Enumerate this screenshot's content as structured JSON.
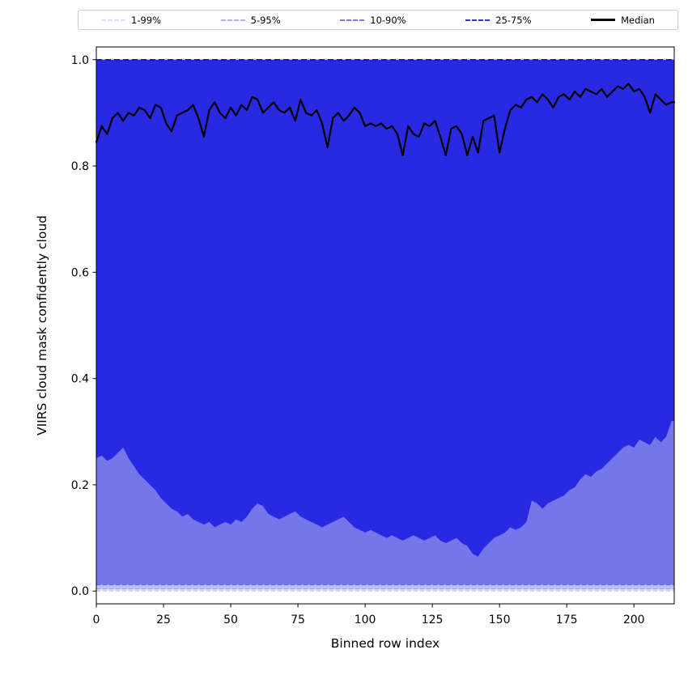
{
  "legend": {
    "entries": [
      {
        "label": "1-99%",
        "style": "dashed",
        "color": "#1c1ce0",
        "opacity": 0.15,
        "width": 2
      },
      {
        "label": "5-95%",
        "style": "dashed",
        "color": "#1c1ce0",
        "opacity": 0.35,
        "width": 2
      },
      {
        "label": "10-90%",
        "style": "dashed",
        "color": "#1c1ce0",
        "opacity": 0.6,
        "width": 2
      },
      {
        "label": "25-75%",
        "style": "dashed",
        "color": "#1c1ce0",
        "opacity": 0.9,
        "width": 2
      },
      {
        "label": "Median",
        "style": "solid",
        "color": "#000000",
        "opacity": 1,
        "width": 3
      }
    ]
  },
  "chart_data": {
    "type": "area",
    "title": "",
    "xlabel": "Binned row index",
    "ylabel": "VIIRS cloud mask confidently cloud",
    "xlim": [
      0,
      215
    ],
    "ylim": [
      -0.024,
      1.024
    ],
    "xticks": [
      0,
      25,
      50,
      75,
      100,
      125,
      150,
      175,
      200
    ],
    "yticks": [
      0.0,
      0.2,
      0.4,
      0.6,
      0.8,
      1.0
    ],
    "grid": false,
    "legend_position": "top-expanded",
    "base_color": "#1c1ce0",
    "median_color": "#000000",
    "upper_bound_line": {
      "y": 1.0,
      "style": "dashed",
      "color": "#10109a"
    },
    "x": [
      0,
      2,
      4,
      6,
      8,
      10,
      12,
      14,
      16,
      18,
      20,
      22,
      24,
      26,
      28,
      30,
      32,
      34,
      36,
      38,
      40,
      42,
      44,
      46,
      48,
      50,
      52,
      54,
      56,
      58,
      60,
      62,
      64,
      66,
      68,
      70,
      72,
      74,
      76,
      78,
      80,
      82,
      84,
      86,
      88,
      90,
      92,
      94,
      96,
      98,
      100,
      102,
      104,
      106,
      108,
      110,
      112,
      114,
      116,
      118,
      120,
      122,
      124,
      126,
      128,
      130,
      132,
      134,
      136,
      138,
      140,
      142,
      144,
      146,
      148,
      150,
      152,
      154,
      156,
      158,
      160,
      162,
      164,
      166,
      168,
      170,
      172,
      174,
      176,
      178,
      180,
      182,
      184,
      186,
      188,
      190,
      192,
      194,
      196,
      198,
      200,
      202,
      204,
      206,
      208,
      210,
      212,
      214
    ],
    "bands": [
      {
        "name": "1-99%",
        "low": 0.0,
        "high": 1.0,
        "fill_alpha": 0.12
      },
      {
        "name": "5-95%",
        "low": 0.004,
        "high": 1.0,
        "fill_alpha": 0.18
      },
      {
        "name": "10-90%",
        "low": 0.012,
        "high": 1.0,
        "fill_alpha": 0.45
      },
      {
        "name": "25-75%",
        "high": 1.0,
        "fill_alpha": 0.85,
        "low_series": [
          0.25,
          0.255,
          0.245,
          0.25,
          0.26,
          0.27,
          0.25,
          0.235,
          0.22,
          0.21,
          0.2,
          0.19,
          0.175,
          0.165,
          0.155,
          0.15,
          0.14,
          0.145,
          0.135,
          0.13,
          0.125,
          0.13,
          0.12,
          0.125,
          0.13,
          0.125,
          0.135,
          0.13,
          0.14,
          0.155,
          0.165,
          0.16,
          0.145,
          0.14,
          0.135,
          0.14,
          0.145,
          0.15,
          0.14,
          0.135,
          0.13,
          0.125,
          0.12,
          0.125,
          0.13,
          0.135,
          0.14,
          0.13,
          0.12,
          0.115,
          0.11,
          0.115,
          0.11,
          0.105,
          0.1,
          0.105,
          0.1,
          0.095,
          0.1,
          0.105,
          0.1,
          0.095,
          0.1,
          0.105,
          0.095,
          0.09,
          0.095,
          0.1,
          0.09,
          0.085,
          0.07,
          0.065,
          0.08,
          0.09,
          0.1,
          0.105,
          0.11,
          0.12,
          0.115,
          0.12,
          0.13,
          0.17,
          0.165,
          0.155,
          0.165,
          0.17,
          0.175,
          0.18,
          0.19,
          0.195,
          0.21,
          0.22,
          0.215,
          0.225,
          0.23,
          0.24,
          0.25,
          0.26,
          0.27,
          0.275,
          0.27,
          0.285,
          0.28,
          0.275,
          0.29,
          0.28,
          0.29,
          0.32
        ]
      }
    ],
    "median": [
      0.845,
      0.875,
      0.86,
      0.89,
      0.9,
      0.885,
      0.9,
      0.895,
      0.91,
      0.905,
      0.89,
      0.915,
      0.91,
      0.88,
      0.865,
      0.895,
      0.9,
      0.905,
      0.915,
      0.89,
      0.855,
      0.905,
      0.92,
      0.9,
      0.89,
      0.91,
      0.895,
      0.915,
      0.905,
      0.93,
      0.925,
      0.9,
      0.91,
      0.92,
      0.905,
      0.9,
      0.91,
      0.885,
      0.925,
      0.9,
      0.895,
      0.905,
      0.88,
      0.835,
      0.89,
      0.9,
      0.885,
      0.895,
      0.91,
      0.9,
      0.875,
      0.88,
      0.875,
      0.88,
      0.87,
      0.875,
      0.86,
      0.82,
      0.875,
      0.86,
      0.855,
      0.88,
      0.875,
      0.885,
      0.855,
      0.82,
      0.87,
      0.875,
      0.86,
      0.82,
      0.855,
      0.825,
      0.885,
      0.89,
      0.895,
      0.825,
      0.87,
      0.905,
      0.915,
      0.91,
      0.925,
      0.93,
      0.92,
      0.935,
      0.925,
      0.91,
      0.93,
      0.935,
      0.925,
      0.94,
      0.93,
      0.945,
      0.94,
      0.935,
      0.945,
      0.93,
      0.94,
      0.95,
      0.945,
      0.955,
      0.94,
      0.945,
      0.93,
      0.9,
      0.935,
      0.925,
      0.915,
      0.92
    ]
  }
}
